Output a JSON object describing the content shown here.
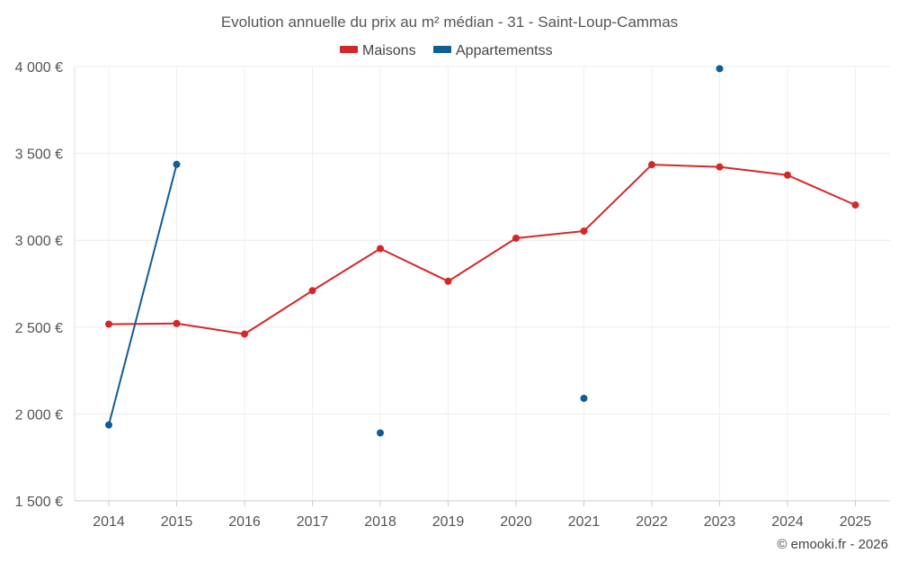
{
  "chart_data": {
    "type": "line",
    "title": "Evolution annuelle du prix au m² médian - 31 - Saint-Loup-Cammas",
    "categories": [
      "2014",
      "2015",
      "2016",
      "2017",
      "2018",
      "2019",
      "2020",
      "2021",
      "2022",
      "2023",
      "2024",
      "2025"
    ],
    "y_ticks": [
      "1 500 €",
      "2 000 €",
      "2 500 €",
      "3 000 €",
      "3 500 €",
      "4 000 €"
    ],
    "ylim": [
      1500,
      4000
    ],
    "grid": true,
    "legend_position": "top-center",
    "series": [
      {
        "name": "Maisons",
        "color": "#d62728",
        "values": [
          2517,
          2521,
          2460,
          2710,
          2952,
          2764,
          3012,
          3053,
          3435,
          3422,
          3375,
          3203
        ]
      },
      {
        "name": "Appartementss",
        "color": "#0f5e96",
        "values": [
          1937,
          3437,
          null,
          null,
          1891,
          null,
          null,
          2090,
          null,
          3988,
          null,
          null
        ]
      }
    ]
  },
  "credit": "© emooki.fr - 2026"
}
